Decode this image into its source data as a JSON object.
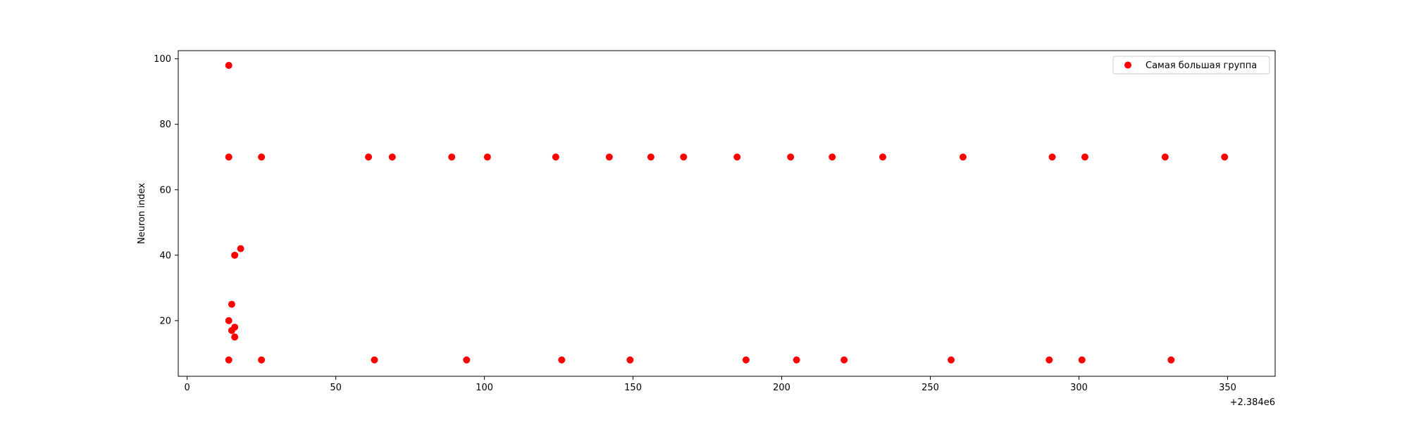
{
  "chart_data": {
    "type": "scatter",
    "title": "",
    "xlabel": "",
    "ylabel": "Neuron index",
    "x_offset_label": "+2.384e6",
    "xlim": [
      -3,
      366
    ],
    "ylim": [
      3,
      102.5
    ],
    "xticks": [
      "0",
      "50",
      "100",
      "150",
      "200",
      "250",
      "300",
      "350"
    ],
    "yticks": [
      "20",
      "40",
      "60",
      "80",
      "100"
    ],
    "grid": false,
    "legend_position": "top-right",
    "series": [
      {
        "name": "Самая большая группа",
        "color": "#ff0000",
        "points": [
          [
            14,
            98
          ],
          [
            14,
            70
          ],
          [
            25,
            70
          ],
          [
            61,
            70
          ],
          [
            69,
            70
          ],
          [
            89,
            70
          ],
          [
            101,
            70
          ],
          [
            124,
            70
          ],
          [
            142,
            70
          ],
          [
            156,
            70
          ],
          [
            167,
            70
          ],
          [
            185,
            70
          ],
          [
            203,
            70
          ],
          [
            217,
            70
          ],
          [
            234,
            70
          ],
          [
            261,
            70
          ],
          [
            291,
            70
          ],
          [
            302,
            70
          ],
          [
            329,
            70
          ],
          [
            349,
            70
          ],
          [
            18,
            42
          ],
          [
            16,
            40
          ],
          [
            15,
            25
          ],
          [
            14,
            20
          ],
          [
            16,
            18
          ],
          [
            15,
            17
          ],
          [
            16,
            15
          ],
          [
            14,
            8
          ],
          [
            25,
            8
          ],
          [
            63,
            8
          ],
          [
            94,
            8
          ],
          [
            126,
            8
          ],
          [
            149,
            8
          ],
          [
            188,
            8
          ],
          [
            205,
            8
          ],
          [
            221,
            8
          ],
          [
            257,
            8
          ],
          [
            290,
            8
          ],
          [
            301,
            8
          ],
          [
            331,
            8
          ]
        ]
      }
    ]
  }
}
